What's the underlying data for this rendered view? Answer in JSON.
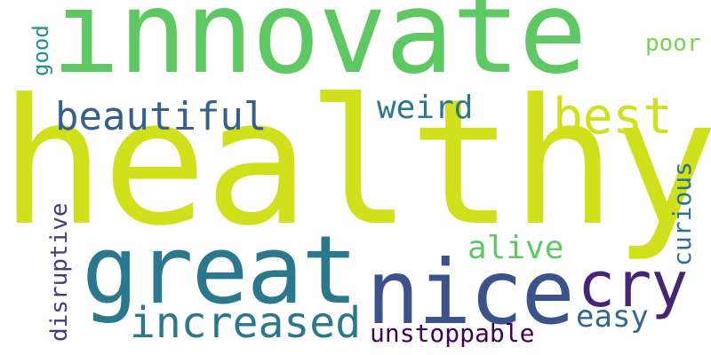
{
  "words": {
    "healthy": "healthy",
    "innovate": "innovate",
    "great": "great",
    "nice": "nice",
    "cry": "cry",
    "best": "best",
    "beautiful": "beautiful",
    "weird": "weird",
    "increased": "increased",
    "alive": "alive",
    "easy": "easy",
    "unstoppable": "unstoppable",
    "poor": "poor",
    "good": "good",
    "disruptive": "disruptive",
    "curious": "curious"
  },
  "colors": {
    "background": "#ffffff",
    "palette": [
      "#d0e11c",
      "#5ec962",
      "#2a788e",
      "#3b528b",
      "#482475",
      "#355f8d",
      "#7ad151",
      "#21918c",
      "#443a83",
      "#31688e",
      "#440154",
      "#2c728e"
    ]
  }
}
